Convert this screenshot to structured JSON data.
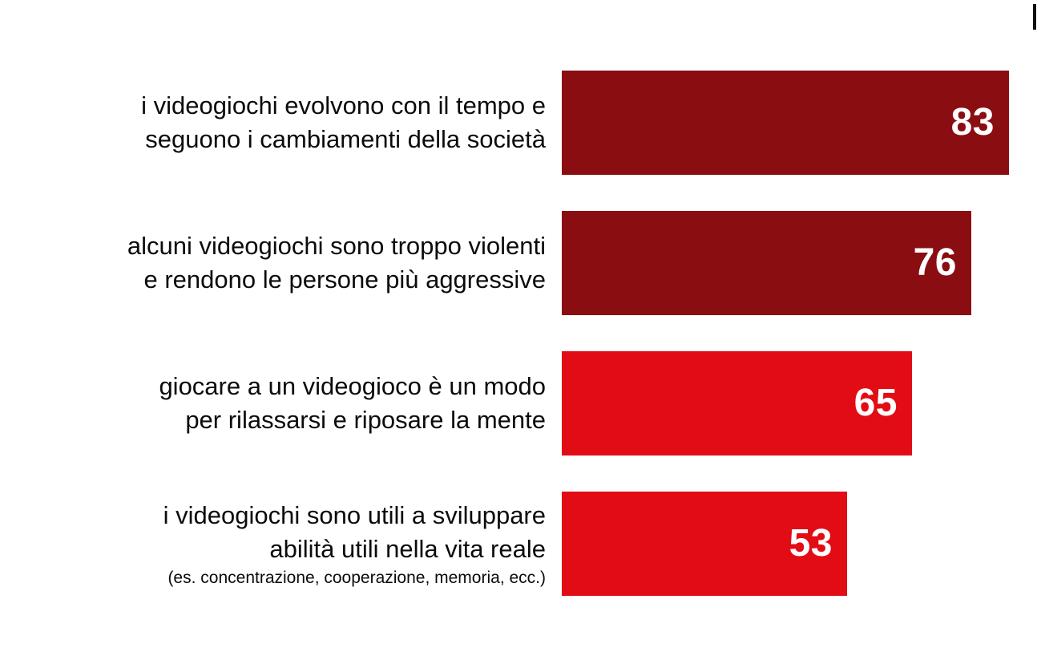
{
  "page": {
    "background": "#ffffff",
    "text_color": "#0b0b0b"
  },
  "chart_data": {
    "type": "bar",
    "orientation": "horizontal",
    "title": "",
    "xlabel": "",
    "ylabel": "",
    "grid": false,
    "axes_visible": false,
    "legend": "none",
    "xlim": [
      0,
      88.2
    ],
    "value_labels_position": "inside-end",
    "value_label_color": "#ffffff",
    "categories": [
      "i videogiochi evolvono con il tempo e seguono i cambiamenti della società",
      "alcuni videogiochi sono troppo violenti e rendono le persone più aggressive",
      "giocare a un videogioco è un modo per rilassarsi e riposare la mente",
      "i videogiochi sono utili a sviluppare abilità utili nella vita reale (es. concentrazione, cooperazione, memoria, ecc.)"
    ],
    "values": [
      83,
      76,
      65,
      53
    ],
    "rows": [
      {
        "label_lines": [
          "i videogiochi evolvono con il tempo e",
          "seguono i cambiamenti della società"
        ],
        "sublabel": "",
        "value": 83,
        "color": "#8a0d11"
      },
      {
        "label_lines": [
          "alcuni videogiochi sono troppo violenti",
          "e rendono le persone più aggressive"
        ],
        "sublabel": "",
        "value": 76,
        "color": "#8a0d11"
      },
      {
        "label_lines": [
          "giocare a un videogioco è un modo",
          "per rilassarsi e riposare la mente"
        ],
        "sublabel": "",
        "value": 65,
        "color": "#e20c15"
      },
      {
        "label_lines": [
          "i videogiochi sono utili a sviluppare",
          "abilità utili nella vita reale"
        ],
        "sublabel": "(es. concentrazione, cooperazione, memoria, ecc.)",
        "value": 53,
        "color": "#e20c15"
      }
    ]
  }
}
